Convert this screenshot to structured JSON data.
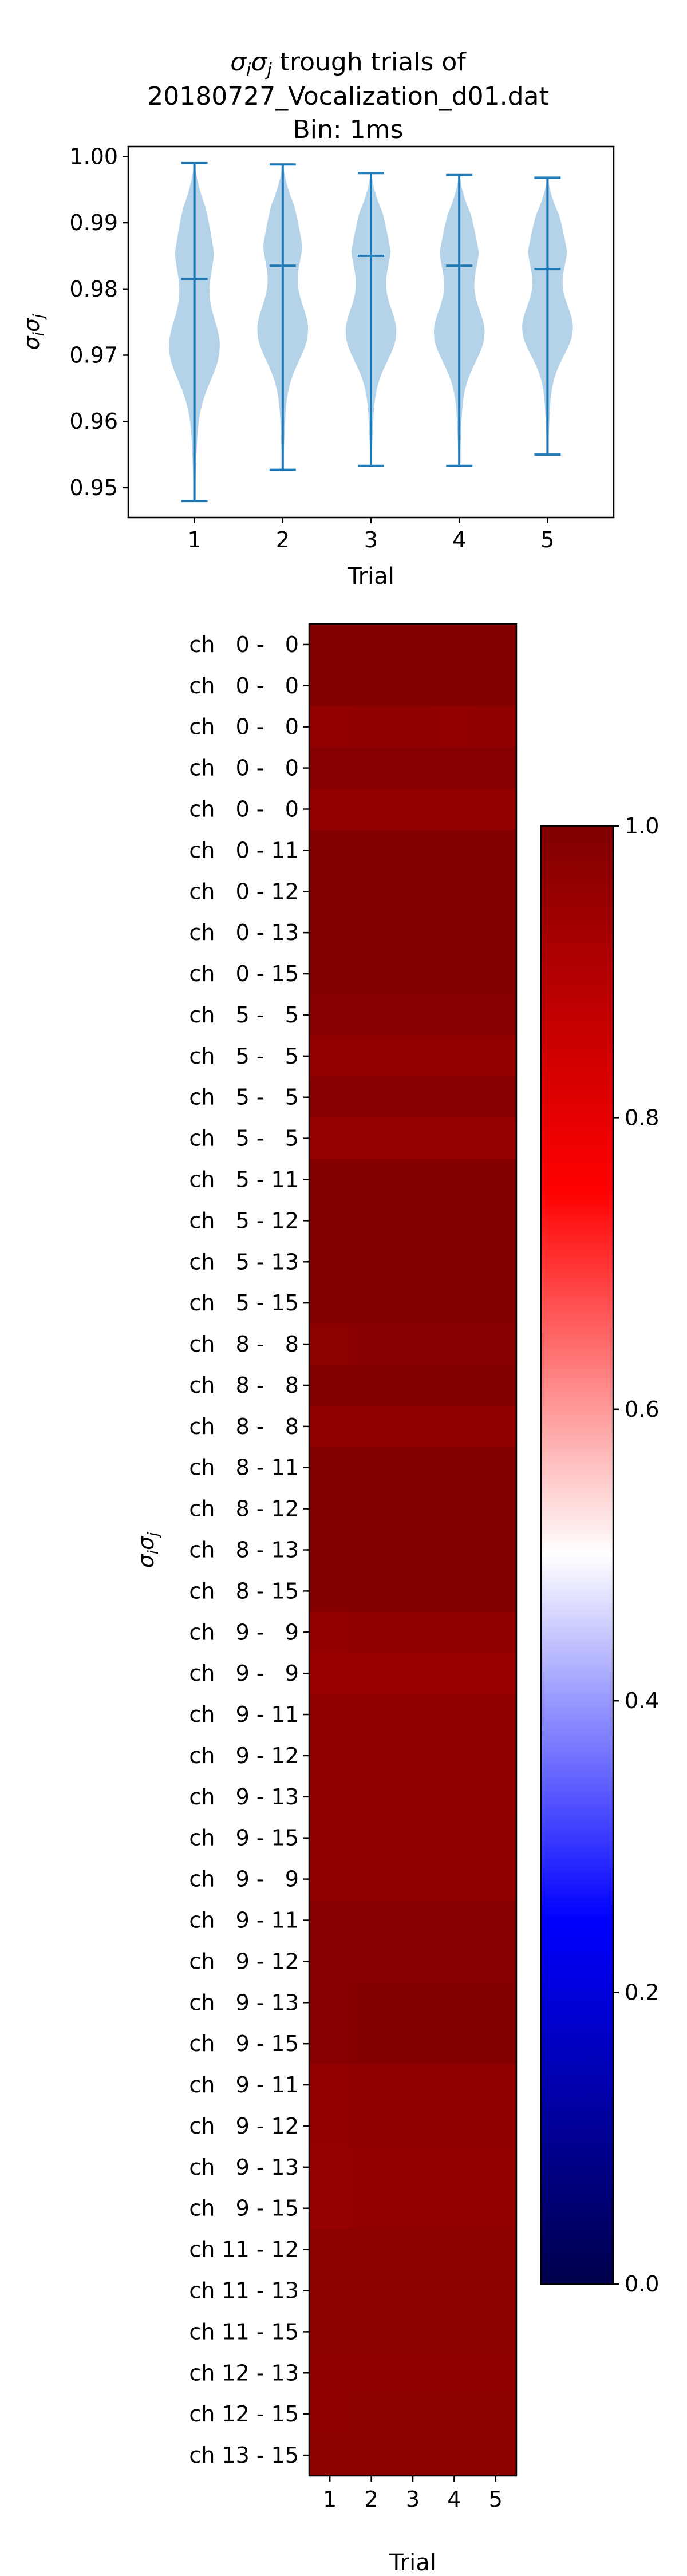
{
  "title": {
    "line1_sym": "σ",
    "line1_sub1": "i",
    "line1_sym2": "σ",
    "line1_sub2": "j",
    "line1_rest": " trough trials of",
    "line2": "20180727_Vocalization_d01.dat",
    "line3": "Bin: 1ms"
  },
  "colors": {
    "violin_fill": "#b4d3e9",
    "violin_line": "#1f77b4",
    "cmap": [
      "#00004c",
      "#0000ff",
      "#ffffff",
      "#ff0000",
      "#7f0000"
    ]
  },
  "chart_data": [
    {
      "type": "violin",
      "xlabel": "Trial",
      "ylabel_sym": "σ",
      "ylabel_sub1": "i",
      "ylabel_sym2": "σ",
      "ylabel_sub2": "j",
      "categories": [
        "1",
        "2",
        "3",
        "4",
        "5"
      ],
      "ylim": [
        0.9455,
        1.0015
      ],
      "yticks": [
        "0.95",
        "0.96",
        "0.97",
        "0.98",
        "0.99",
        "1.00"
      ],
      "series": [
        {
          "min": 0.948,
          "max": 0.999,
          "median": 0.9815
        },
        {
          "min": 0.9527,
          "max": 0.9988,
          "median": 0.9835
        },
        {
          "min": 0.9533,
          "max": 0.9975,
          "median": 0.985
        },
        {
          "min": 0.9533,
          "max": 0.9972,
          "median": 0.9835
        },
        {
          "min": 0.955,
          "max": 0.9968,
          "median": 0.983
        }
      ],
      "grid": false,
      "legend": "none"
    },
    {
      "type": "heatmap",
      "xlabel": "Trial",
      "ylabel_sym": "σ",
      "ylabel_sub1": "i",
      "ylabel_sym2": "σ",
      "ylabel_sub2": "j",
      "columns": [
        "1",
        "2",
        "3",
        "4",
        "5"
      ],
      "rows": [
        "ch   0 -   0",
        "ch   0 -   0",
        "ch   0 -   0",
        "ch   0 -   0",
        "ch   0 -   0",
        "ch   0 - 11",
        "ch   0 - 12",
        "ch   0 - 13",
        "ch   0 - 15",
        "ch   5 -   5",
        "ch   5 -   5",
        "ch   5 -   5",
        "ch   5 -   5",
        "ch   5 - 11",
        "ch   5 - 12",
        "ch   5 - 13",
        "ch   5 - 15",
        "ch   8 -   8",
        "ch   8 -   8",
        "ch   8 -   8",
        "ch   8 - 11",
        "ch   8 - 12",
        "ch   8 - 13",
        "ch   8 - 15",
        "ch   9 -   9",
        "ch   9 -   9",
        "ch   9 - 11",
        "ch   9 - 12",
        "ch   9 - 13",
        "ch   9 - 15",
        "ch   9 -   9",
        "ch   9 - 11",
        "ch   9 - 12",
        "ch   9 - 13",
        "ch   9 - 15",
        "ch   9 - 11",
        "ch   9 - 12",
        "ch   9 - 13",
        "ch   9 - 15",
        "ch 11 - 12",
        "ch 11 - 13",
        "ch 11 - 15",
        "ch 12 - 13",
        "ch 12 - 15",
        "ch 13 - 15"
      ],
      "values": [
        [
          0.99,
          0.99,
          0.99,
          0.99,
          0.99
        ],
        [
          0.99,
          0.99,
          0.99,
          0.99,
          0.99
        ],
        [
          0.96,
          0.965,
          0.965,
          0.96,
          0.965
        ],
        [
          0.985,
          0.985,
          0.985,
          0.985,
          0.985
        ],
        [
          0.96,
          0.96,
          0.96,
          0.96,
          0.96
        ],
        [
          0.99,
          0.99,
          0.99,
          0.99,
          0.99
        ],
        [
          0.99,
          0.99,
          0.99,
          0.99,
          0.99
        ],
        [
          0.995,
          0.995,
          0.995,
          0.995,
          0.995
        ],
        [
          0.995,
          0.995,
          0.995,
          0.995,
          0.995
        ],
        [
          0.985,
          0.985,
          0.985,
          0.985,
          0.985
        ],
        [
          0.96,
          0.96,
          0.96,
          0.96,
          0.96
        ],
        [
          0.985,
          0.985,
          0.985,
          0.985,
          0.985
        ],
        [
          0.955,
          0.955,
          0.955,
          0.955,
          0.955
        ],
        [
          0.99,
          0.99,
          0.99,
          0.99,
          0.99
        ],
        [
          0.99,
          0.99,
          0.99,
          0.99,
          0.99
        ],
        [
          0.99,
          0.99,
          0.99,
          0.99,
          0.99
        ],
        [
          0.99,
          0.995,
          0.995,
          0.995,
          0.995
        ],
        [
          0.975,
          0.98,
          0.98,
          0.98,
          0.98
        ],
        [
          0.995,
          0.995,
          0.995,
          0.995,
          0.995
        ],
        [
          0.965,
          0.965,
          0.965,
          0.965,
          0.965
        ],
        [
          0.995,
          0.995,
          0.995,
          0.995,
          0.995
        ],
        [
          0.995,
          0.995,
          0.995,
          0.995,
          0.995
        ],
        [
          0.995,
          0.995,
          0.995,
          0.995,
          0.995
        ],
        [
          0.99,
          0.995,
          0.995,
          0.995,
          0.995
        ],
        [
          0.96,
          0.965,
          0.965,
          0.965,
          0.965
        ],
        [
          0.95,
          0.95,
          0.95,
          0.95,
          0.95
        ],
        [
          0.97,
          0.97,
          0.97,
          0.97,
          0.97
        ],
        [
          0.97,
          0.97,
          0.97,
          0.97,
          0.97
        ],
        [
          0.965,
          0.965,
          0.965,
          0.965,
          0.965
        ],
        [
          0.97,
          0.97,
          0.97,
          0.97,
          0.97
        ],
        [
          0.965,
          0.965,
          0.965,
          0.965,
          0.965
        ],
        [
          0.985,
          0.985,
          0.985,
          0.985,
          0.985
        ],
        [
          0.985,
          0.985,
          0.985,
          0.985,
          0.985
        ],
        [
          0.985,
          0.99,
          0.99,
          0.99,
          0.99
        ],
        [
          0.985,
          0.99,
          0.99,
          0.99,
          0.99
        ],
        [
          0.96,
          0.965,
          0.965,
          0.965,
          0.965
        ],
        [
          0.96,
          0.965,
          0.965,
          0.965,
          0.965
        ],
        [
          0.955,
          0.96,
          0.96,
          0.96,
          0.96
        ],
        [
          0.955,
          0.96,
          0.96,
          0.96,
          0.96
        ],
        [
          0.975,
          0.975,
          0.975,
          0.975,
          0.975
        ],
        [
          0.975,
          0.975,
          0.975,
          0.975,
          0.975
        ],
        [
          0.975,
          0.975,
          0.975,
          0.975,
          0.975
        ],
        [
          0.97,
          0.97,
          0.97,
          0.97,
          0.97
        ],
        [
          0.97,
          0.975,
          0.975,
          0.975,
          0.975
        ],
        [
          0.975,
          0.975,
          0.975,
          0.975,
          0.975
        ]
      ],
      "colorbar": {
        "range": [
          0.0,
          1.0
        ],
        "ticks": [
          "0.0",
          "0.2",
          "0.4",
          "0.6",
          "0.8",
          "1.0"
        ]
      }
    }
  ]
}
